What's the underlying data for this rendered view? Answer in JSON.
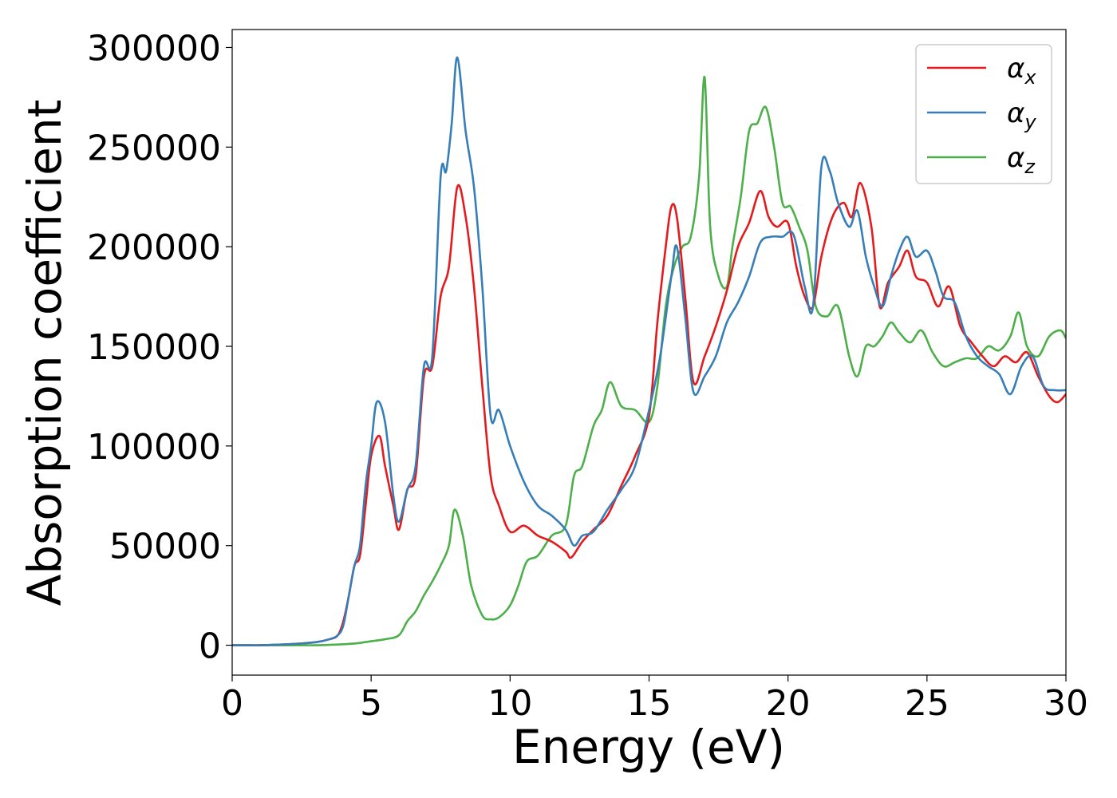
{
  "chart_data": {
    "type": "line",
    "xlabel": "Energy (eV)",
    "ylabel": "Absorption coefficient",
    "xlim": [
      0,
      30
    ],
    "ylim": [
      -15000,
      309000
    ],
    "xticks": [
      0,
      5,
      10,
      15,
      20,
      25,
      30
    ],
    "xtick_labels": [
      "0",
      "5",
      "10",
      "15",
      "20",
      "25",
      "30"
    ],
    "yticks": [
      0,
      50000,
      100000,
      150000,
      200000,
      250000,
      300000
    ],
    "ytick_labels": [
      "0",
      "50000",
      "100000",
      "150000",
      "200000",
      "250000",
      "300000"
    ],
    "grid": false,
    "legend_position": "top-right",
    "series": [
      {
        "name": "α",
        "subscript": "x",
        "color": "#e41a1c",
        "x": [
          0,
          0.5,
          1,
          2,
          3,
          3.5,
          3.8,
          4.0,
          4.2,
          4.4,
          4.6,
          4.8,
          5.0,
          5.3,
          5.5,
          5.8,
          6.0,
          6.3,
          6.6,
          6.9,
          7.2,
          7.5,
          7.8,
          8.1,
          8.4,
          8.7,
          9.0,
          9.3,
          9.6,
          10.0,
          10.5,
          11.0,
          11.5,
          12.0,
          12.2,
          12.6,
          13.0,
          13.5,
          14.0,
          14.5,
          15.0,
          15.3,
          15.6,
          15.8,
          16.0,
          16.3,
          16.6,
          17.0,
          17.4,
          17.8,
          18.2,
          18.6,
          19.0,
          19.3,
          19.6,
          20.0,
          20.3,
          20.6,
          20.9,
          21.2,
          21.6,
          22.0,
          22.3,
          22.6,
          23.0,
          23.3,
          23.6,
          24.0,
          24.3,
          24.6,
          25.0,
          25.4,
          25.8,
          26.2,
          26.6,
          27.0,
          27.4,
          27.8,
          28.2,
          28.6,
          29.0,
          29.4,
          29.7,
          30.0
        ],
        "values": [
          0,
          0,
          0,
          500,
          1500,
          3000,
          5000,
          12000,
          25000,
          40000,
          45000,
          70000,
          95000,
          105000,
          90000,
          70000,
          58000,
          78000,
          85000,
          135000,
          140000,
          175000,
          190000,
          230000,
          215000,
          180000,
          130000,
          85000,
          70000,
          57000,
          60000,
          55000,
          52000,
          47000,
          44000,
          52000,
          58000,
          65000,
          80000,
          95000,
          115000,
          162000,
          200000,
          220000,
          215000,
          175000,
          132000,
          145000,
          160000,
          178000,
          200000,
          212000,
          228000,
          215000,
          210000,
          212000,
          190000,
          175000,
          170000,
          195000,
          215000,
          222000,
          215000,
          232000,
          210000,
          170000,
          182000,
          190000,
          198000,
          185000,
          182000,
          170000,
          180000,
          160000,
          152000,
          145000,
          140000,
          145000,
          142000,
          147000,
          135000,
          125000,
          122000,
          126000
        ]
      },
      {
        "name": "α",
        "subscript": "y",
        "color": "#377eb8",
        "x": [
          0,
          0.5,
          1,
          2,
          3,
          3.5,
          3.8,
          4.0,
          4.2,
          4.4,
          4.6,
          4.8,
          5.0,
          5.2,
          5.5,
          5.8,
          6.0,
          6.3,
          6.6,
          6.9,
          7.2,
          7.5,
          7.7,
          7.9,
          8.1,
          8.4,
          8.7,
          9.0,
          9.3,
          9.6,
          10.0,
          10.5,
          11.0,
          11.5,
          12.0,
          12.3,
          12.6,
          13.0,
          13.5,
          14.0,
          14.5,
          15.0,
          15.4,
          15.8,
          16.0,
          16.3,
          16.6,
          17.0,
          17.4,
          17.8,
          18.2,
          18.6,
          19.0,
          19.4,
          19.8,
          20.2,
          20.6,
          20.9,
          21.2,
          21.5,
          21.8,
          22.2,
          22.5,
          22.8,
          23.1,
          23.4,
          23.7,
          24.0,
          24.3,
          24.6,
          25.0,
          25.3,
          25.6,
          26.0,
          26.4,
          26.8,
          27.2,
          27.6,
          28.0,
          28.4,
          28.8,
          29.2,
          29.6,
          30.0
        ],
        "values": [
          0,
          0,
          0,
          500,
          1500,
          3000,
          5000,
          10000,
          25000,
          40000,
          50000,
          80000,
          100000,
          122000,
          112000,
          75000,
          62000,
          78000,
          90000,
          140000,
          145000,
          235000,
          238000,
          262000,
          295000,
          258000,
          230000,
          180000,
          115000,
          118000,
          100000,
          82000,
          70000,
          65000,
          58000,
          50000,
          55000,
          57000,
          68000,
          78000,
          90000,
          118000,
          145000,
          185000,
          200000,
          165000,
          127000,
          135000,
          145000,
          162000,
          172000,
          185000,
          202000,
          205000,
          205000,
          206000,
          180000,
          170000,
          240000,
          238000,
          222000,
          210000,
          218000,
          195000,
          180000,
          170000,
          185000,
          198000,
          205000,
          195000,
          198000,
          188000,
          175000,
          172000,
          155000,
          145000,
          140000,
          136000,
          126000,
          140000,
          145000,
          130000,
          128000,
          128000
        ]
      },
      {
        "name": "α",
        "subscript": "z",
        "color": "#4daf4a",
        "x": [
          0,
          1,
          2,
          3,
          4,
          4.5,
          5.0,
          5.5,
          6.0,
          6.3,
          6.6,
          6.9,
          7.2,
          7.5,
          7.8,
          8.0,
          8.3,
          8.6,
          9.0,
          9.3,
          9.6,
          10.0,
          10.3,
          10.6,
          11.0,
          11.5,
          12.0,
          12.3,
          12.6,
          13.0,
          13.3,
          13.6,
          14.0,
          14.5,
          15.0,
          15.3,
          15.6,
          15.9,
          16.2,
          16.5,
          16.8,
          17.0,
          17.2,
          17.5,
          17.8,
          18.0,
          18.3,
          18.6,
          18.9,
          19.2,
          19.5,
          19.8,
          20.1,
          20.4,
          20.7,
          21.0,
          21.4,
          21.8,
          22.2,
          22.5,
          22.8,
          23.1,
          23.4,
          23.7,
          24.0,
          24.4,
          24.8,
          25.2,
          25.6,
          26.0,
          26.4,
          26.8,
          27.2,
          27.6,
          28.0,
          28.3,
          28.6,
          29.0,
          29.4,
          29.8,
          30.0
        ],
        "values": [
          0,
          0,
          0,
          0,
          500,
          1000,
          2000,
          3000,
          5000,
          12000,
          17000,
          25000,
          32000,
          40000,
          50000,
          68000,
          55000,
          30000,
          15000,
          13000,
          14000,
          20000,
          30000,
          42000,
          45000,
          55000,
          60000,
          85000,
          90000,
          110000,
          118000,
          132000,
          120000,
          118000,
          112000,
          130000,
          170000,
          190000,
          200000,
          205000,
          235000,
          285000,
          210000,
          185000,
          180000,
          200000,
          225000,
          258000,
          262000,
          270000,
          250000,
          222000,
          220000,
          210000,
          198000,
          170000,
          165000,
          170000,
          145000,
          135000,
          150000,
          150000,
          155000,
          162000,
          157000,
          152000,
          158000,
          147000,
          140000,
          142000,
          144000,
          144000,
          150000,
          148000,
          155000,
          167000,
          150000,
          145000,
          155000,
          158000,
          154000
        ]
      }
    ]
  }
}
